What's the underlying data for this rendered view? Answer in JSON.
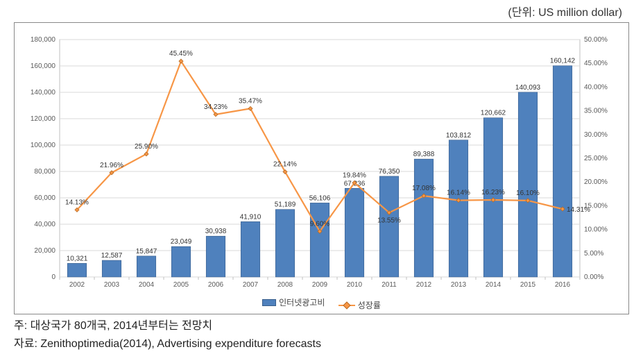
{
  "unit_label": "(단위: US million dollar)",
  "chart": {
    "type": "bar+line",
    "background_color": "#ffffff",
    "plot_border_color": "#bfbfbf",
    "grid_color": "#d9d9d9",
    "years": [
      "2002",
      "2003",
      "2004",
      "2005",
      "2006",
      "2007",
      "2008",
      "2009",
      "2010",
      "2011",
      "2012",
      "2013",
      "2014",
      "2015",
      "2016"
    ],
    "bars": {
      "label": "인터넷광고비",
      "values": [
        10321,
        12587,
        15847,
        23049,
        30938,
        41910,
        51189,
        56106,
        67236,
        76350,
        89388,
        103812,
        120662,
        140093,
        160142
      ],
      "display": [
        "10,321",
        "12,587",
        "15,847",
        "23,049",
        "30,938",
        "41,910",
        "51,189",
        "56,106",
        "67,236",
        "76,350",
        "89,388",
        "103,812",
        "120,662",
        "140,093",
        "160,142"
      ],
      "color": "#4f81bd",
      "border_color": "#385d8a",
      "bar_width_ratio": 0.55,
      "label_fontsize": 10,
      "label_color": "#333333"
    },
    "line": {
      "label": "성장률",
      "values": [
        14.13,
        21.96,
        25.9,
        45.45,
        34.23,
        35.47,
        22.14,
        9.6,
        19.84,
        13.55,
        17.08,
        16.14,
        16.23,
        16.1,
        14.31
      ],
      "display": [
        "14.13%",
        "21.96%",
        "25.90%",
        "45.45%",
        "34.23%",
        "35.47%",
        "22.14%",
        "9.60%",
        "19.84%",
        "13.55%",
        "17.08%",
        "16.14%",
        "16.23%",
        "16.10%",
        "14.31%"
      ],
      "color": "#f79646",
      "marker_border": "#b66b24",
      "line_width": 2.2,
      "marker_size": 6,
      "label_fontsize": 10,
      "label_color": "#333333"
    },
    "y_left": {
      "min": 0,
      "max": 180000,
      "step": 20000,
      "fontsize": 10,
      "color": "#595959",
      "format": "comma"
    },
    "y_right": {
      "min": 0,
      "max": 50,
      "step": 5,
      "fontsize": 10,
      "color": "#595959",
      "format": "pct2"
    },
    "x_axis": {
      "fontsize": 10,
      "color": "#595959"
    }
  },
  "legend": {
    "bar": "인터넷광고비",
    "line": "성장률"
  },
  "footnote1": "주: 대상국가 80개국, 2014년부터는 전망치",
  "footnote2": "자료: Zenithoptimedia(2014), Advertising expenditure forecasts"
}
